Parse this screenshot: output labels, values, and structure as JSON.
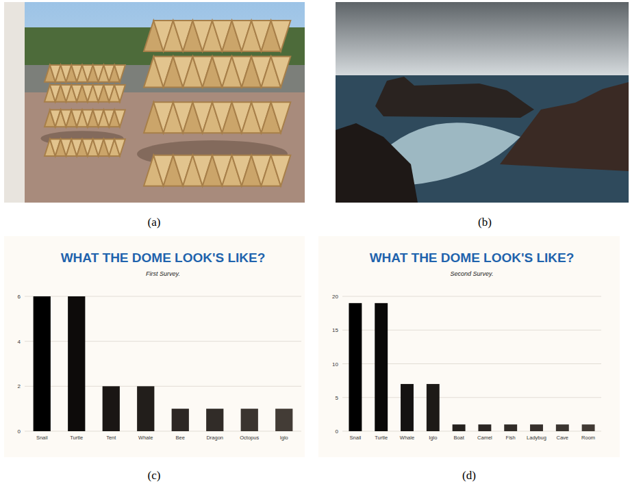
{
  "figure": {
    "panel_labels": [
      "(a)",
      "(b)",
      "(c)",
      "(d)"
    ]
  },
  "chart_data": [
    {
      "type": "bar",
      "title": "WHAT THE DOME LOOK'S LIKE?",
      "subtitle": "First Survey.",
      "categories": [
        "Snail",
        "Turtle",
        "Tent",
        "Whale",
        "Bee",
        "Dragon",
        "Octopus",
        "Iglo"
      ],
      "values": [
        6,
        6,
        2,
        2,
        1,
        1,
        1,
        1
      ],
      "colors": [
        "#000000",
        "#0d0b0a",
        "#1a1614",
        "#221e1b",
        "#2c2724",
        "#312c28",
        "#3a342f",
        "#433c36"
      ],
      "ylim": [
        0,
        6
      ],
      "yticks": [
        0,
        2,
        4,
        6
      ],
      "grid": true
    },
    {
      "type": "bar",
      "title": "WHAT THE DOME LOOK'S LIKE?",
      "subtitle": "Second Survey.",
      "categories": [
        "Snail",
        "Turtle",
        "Whale",
        "Iglo",
        "Boat",
        "Camel",
        "Fish",
        "Ladybug",
        "Cave",
        "Room"
      ],
      "values": [
        19,
        19,
        7,
        7,
        1,
        1,
        1,
        1,
        1,
        1
      ],
      "colors": [
        "#000000",
        "#0a0908",
        "#151211",
        "#1d1a17",
        "#25211e",
        "#2b2623",
        "#312c28",
        "#36302c",
        "#3b3530",
        "#413a34"
      ],
      "ylim": [
        0,
        20
      ],
      "yticks": [
        0,
        5,
        10,
        15,
        20
      ],
      "grid": true
    }
  ]
}
